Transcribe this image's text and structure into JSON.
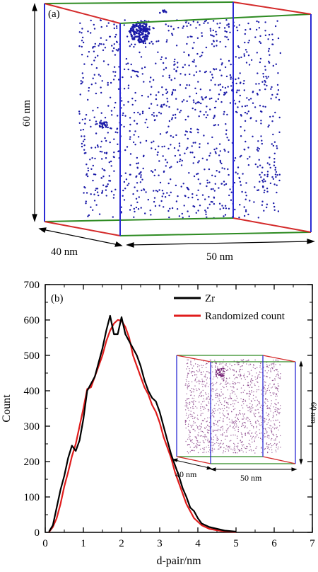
{
  "panel_a": {
    "label": "(a)",
    "dim_height": "60 nm",
    "dim_depth": "40 nm",
    "dim_width": "50 nm",
    "colors": {
      "front_back_edges": "#2e8b22",
      "side_edges": "#d42a2a",
      "vertical_edges": "#2a2ad4",
      "atoms": "#1a1aa8"
    }
  },
  "chart_data": {
    "type": "line",
    "panel_label": "(b)",
    "xlabel": "d-pair/nm",
    "ylabel": "Count",
    "xlim": [
      0,
      7
    ],
    "ylim": [
      0,
      700
    ],
    "xticks": [
      0,
      1,
      2,
      3,
      4,
      5,
      6,
      7
    ],
    "yticks": [
      0,
      100,
      200,
      300,
      400,
      500,
      600,
      700
    ],
    "grid": false,
    "legend_position": "top-right",
    "series": [
      {
        "name": "Zr",
        "color": "#000000",
        "x": [
          0.1,
          0.2,
          0.3,
          0.4,
          0.5,
          0.6,
          0.7,
          0.8,
          0.9,
          1.0,
          1.1,
          1.2,
          1.3,
          1.4,
          1.5,
          1.6,
          1.7,
          1.8,
          1.9,
          2.0,
          2.1,
          2.2,
          2.3,
          2.4,
          2.5,
          2.6,
          2.7,
          2.8,
          2.9,
          3.0,
          3.1,
          3.2,
          3.3,
          3.4,
          3.5,
          3.6,
          3.7,
          3.8,
          3.9,
          4.0,
          4.1,
          4.2,
          4.3,
          4.5,
          4.7,
          5.0
        ],
        "values": [
          2,
          20,
          70,
          120,
          160,
          210,
          245,
          230,
          260,
          320,
          400,
          420,
          440,
          480,
          520,
          570,
          612,
          560,
          560,
          608,
          560,
          540,
          520,
          500,
          470,
          430,
          400,
          380,
          370,
          340,
          300,
          260,
          220,
          190,
          160,
          125,
          100,
          70,
          60,
          40,
          25,
          20,
          15,
          10,
          5,
          2
        ]
      },
      {
        "name": "Randomized count",
        "color": "#e01c1c",
        "x": [
          0.1,
          0.2,
          0.3,
          0.4,
          0.5,
          0.6,
          0.7,
          0.8,
          0.9,
          1.0,
          1.1,
          1.2,
          1.3,
          1.4,
          1.5,
          1.6,
          1.7,
          1.8,
          1.9,
          2.0,
          2.1,
          2.2,
          2.3,
          2.4,
          2.5,
          2.6,
          2.7,
          2.8,
          2.9,
          3.0,
          3.1,
          3.2,
          3.3,
          3.4,
          3.5,
          3.6,
          3.7,
          3.8,
          3.9,
          4.0,
          4.1,
          4.2,
          4.3,
          4.5,
          4.7,
          5.0
        ],
        "values": [
          1,
          15,
          40,
          80,
          130,
          170,
          215,
          250,
          300,
          350,
          405,
          410,
          440,
          470,
          500,
          540,
          570,
          590,
          600,
          598,
          580,
          550,
          500,
          470,
          440,
          410,
          390,
          360,
          340,
          310,
          270,
          240,
          210,
          170,
          140,
          110,
          80,
          60,
          40,
          30,
          20,
          15,
          10,
          6,
          3,
          1
        ]
      }
    ]
  },
  "inset": {
    "dim_height": "60 nm",
    "dim_depth": "40 nm",
    "dim_width": "50 nm",
    "atom_color": "#7a2a7a"
  }
}
